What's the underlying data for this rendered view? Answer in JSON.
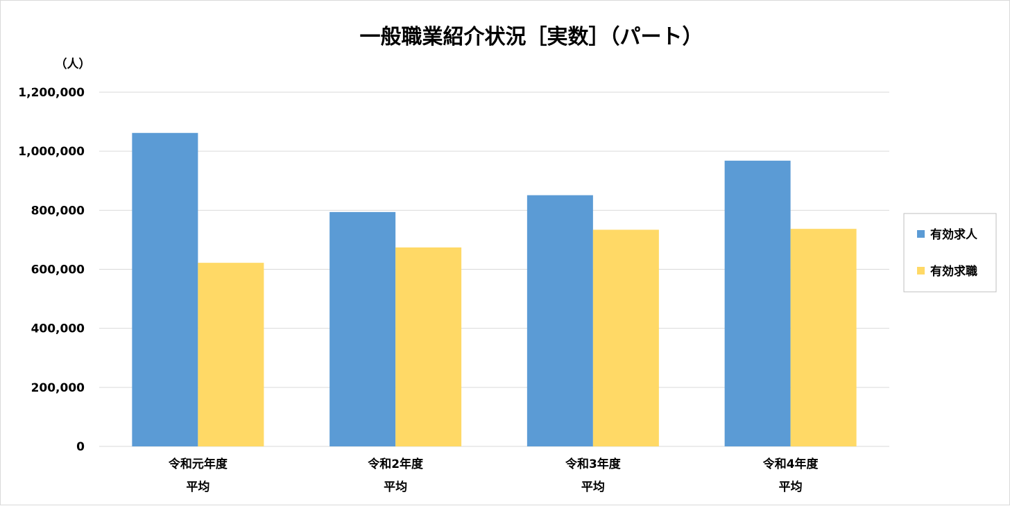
{
  "chart_data": {
    "type": "bar",
    "title": "一般職業紹介状況［実数］（パート）",
    "y_unit": "（人）",
    "categories": [
      [
        "令和元年度",
        "平均"
      ],
      [
        "令和2年度",
        "平均"
      ],
      [
        "令和3年度",
        "平均"
      ],
      [
        "令和4年度",
        "平均"
      ]
    ],
    "series": [
      {
        "name": "有効求人",
        "color": "#5b9bd5",
        "values": [
          1062000,
          794000,
          851000,
          968000
        ]
      },
      {
        "name": "有効求職",
        "color": "#ffd966",
        "values": [
          622000,
          674000,
          734000,
          737000
        ]
      }
    ],
    "ylim": [
      0,
      1200000
    ],
    "yticks": [
      "0",
      "200,000",
      "400,000",
      "600,000",
      "800,000",
      "1,000,000",
      "1,200,000"
    ],
    "ytick_values": [
      0,
      200000,
      400000,
      600000,
      800000,
      1000000,
      1200000
    ],
    "grid": true,
    "gridline_color": "#d9d9d9",
    "legend_position": "right"
  }
}
